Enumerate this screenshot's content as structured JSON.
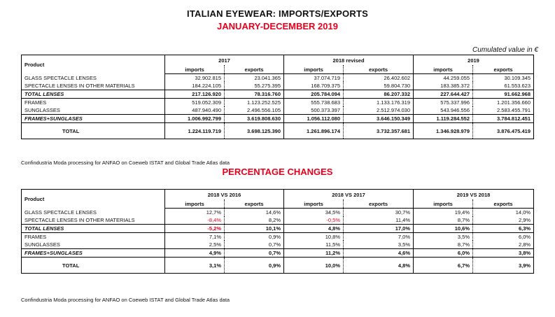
{
  "title": "ITALIAN EYEWEAR: IMPORTS/EXPORTS",
  "subtitle": "JANUARY-DECEMBER 2019",
  "cumulated_label": "Cumulated value in €",
  "product_label": "Product",
  "imports_label": "imports",
  "exports_label": "exports",
  "values_table": {
    "years": [
      "2017",
      "2018 revised",
      "2019"
    ],
    "rows": [
      {
        "label": "GLASS SPECTACLE LENSES",
        "style": "normal",
        "v": [
          "32.902.815",
          "23.041.365",
          "37.074.719",
          "26.402.602",
          "44.259.055",
          "30.109.345"
        ]
      },
      {
        "label": "SPECTACLE LENSES IN OTHER MATERIALS",
        "style": "normal",
        "v": [
          "184.224.105",
          "55.275.395",
          "168.709.375",
          "59.804.730",
          "183.385.372",
          "61.553.623"
        ]
      },
      {
        "label": "TOTAL LENSES",
        "style": "total",
        "v": [
          "217.126.920",
          "78.316.760",
          "205.784.094",
          "86.207.332",
          "227.644.427",
          "91.662.968"
        ]
      },
      {
        "label": "FRAMES",
        "style": "normal",
        "v": [
          "519.052.309",
          "1.123.252.525",
          "555.738.683",
          "1.133.176.319",
          "575.337.996",
          "1.201.356.660"
        ]
      },
      {
        "label": "SUNGLASSES",
        "style": "normal",
        "v": [
          "487.940.490",
          "2.496.556.105",
          "500.373.397",
          "2.512.974.030",
          "543.946.556",
          "2.583.455.791"
        ]
      },
      {
        "label": "FRAMES+SUNGLASES",
        "style": "total",
        "v": [
          "1.006.992.799",
          "3.619.808.630",
          "1.056.112.080",
          "3.646.150.349",
          "1.119.284.552",
          "3.784.812.451"
        ]
      }
    ],
    "total": {
      "label": "TOTAL",
      "v": [
        "1.224.119.719",
        "3.698.125.390",
        "1.261.896.174",
        "3.732.357.681",
        "1.346.928.979",
        "3.876.475.419"
      ]
    }
  },
  "source_note": "Confindustria Moda processing for ANFAO on Coeweb ISTAT and Global Trade Atlas data",
  "pct_title": "PERCENTAGE CHANGES",
  "pct_table": {
    "years": [
      "2018 VS 2016",
      "2018 VS 2017",
      "2019 VS 2018"
    ],
    "rows": [
      {
        "label": "GLASS SPECTACLE LENSES",
        "style": "normal",
        "v": [
          "12,7%",
          "14,6%",
          "34,5%",
          "30,7%",
          "19,4%",
          "14,0%"
        ],
        "neg": [
          false,
          false,
          false,
          false,
          false,
          false
        ]
      },
      {
        "label": "SPECTACLE LENSES IN OTHER MATERIALS",
        "style": "normal",
        "v": [
          "-8,4%",
          "8,2%",
          "-0,5%",
          "11,4%",
          "8,7%",
          "2,9%"
        ],
        "neg": [
          true,
          false,
          true,
          false,
          false,
          false
        ]
      },
      {
        "label": "TOTAL LENSES",
        "style": "total",
        "v": [
          "-5,2%",
          "10,1%",
          "4,8%",
          "17,0%",
          "10,6%",
          "6,3%"
        ],
        "neg": [
          true,
          false,
          false,
          false,
          false,
          false
        ]
      },
      {
        "label": "FRAMES",
        "style": "normal",
        "v": [
          "7,1%",
          "0,9%",
          "10,8%",
          "7,0%",
          "3,5%",
          "6,0%"
        ],
        "neg": [
          false,
          false,
          false,
          false,
          false,
          false
        ]
      },
      {
        "label": "SUNGLASSES",
        "style": "normal",
        "v": [
          "2,5%",
          "0,7%",
          "11,5%",
          "3,5%",
          "8,7%",
          "2,8%"
        ],
        "neg": [
          false,
          false,
          false,
          false,
          false,
          false
        ]
      },
      {
        "label": "FRAMES+SUNGLASES",
        "style": "total",
        "v": [
          "4,9%",
          "0,7%",
          "11,2%",
          "4,6%",
          "6,0%",
          "3,8%"
        ],
        "neg": [
          false,
          false,
          false,
          false,
          false,
          false
        ]
      }
    ],
    "total": {
      "label": "TOTAL",
      "v": [
        "3,1%",
        "0,9%",
        "10,0%",
        "4,8%",
        "6,7%",
        "3,9%"
      ]
    }
  },
  "source_note_2": "Confindustria Moda processing for ANFAO on Coeweb ISTAT and Global Trade Atlas data",
  "colors": {
    "accent_red": "#e8001c",
    "text": "#111111"
  }
}
